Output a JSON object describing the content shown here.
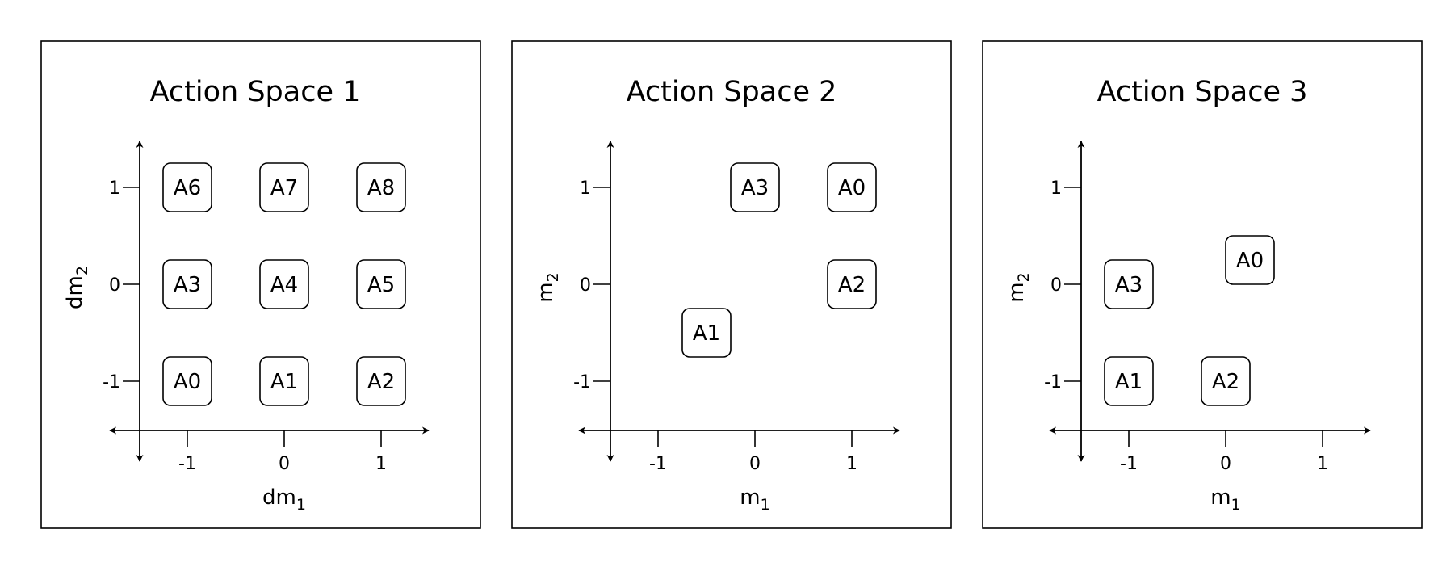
{
  "panels": [
    {
      "title": "Action Space 1",
      "xlabel": "dm",
      "xlabel_sub": "1",
      "ylabel": "dm",
      "ylabel_sub": "2",
      "x_ticks": [
        "-1",
        "0",
        "1"
      ],
      "y_ticks": [
        "1",
        "0",
        "-1"
      ],
      "actions": [
        {
          "label": "A6",
          "x": -1,
          "y": 1
        },
        {
          "label": "A7",
          "x": 0,
          "y": 1
        },
        {
          "label": "A8",
          "x": 1,
          "y": 1
        },
        {
          "label": "A3",
          "x": -1,
          "y": 0
        },
        {
          "label": "A4",
          "x": 0,
          "y": 0
        },
        {
          "label": "A5",
          "x": 1,
          "y": 0
        },
        {
          "label": "A0",
          "x": -1,
          "y": -1
        },
        {
          "label": "A1",
          "x": 0,
          "y": -1
        },
        {
          "label": "A2",
          "x": 1,
          "y": -1
        }
      ]
    },
    {
      "title": "Action Space 2",
      "xlabel": "m",
      "xlabel_sub": "1",
      "ylabel": "m",
      "ylabel_sub": "2",
      "x_ticks": [
        "-1",
        "0",
        "1"
      ],
      "y_ticks": [
        "1",
        "0",
        "-1"
      ],
      "actions": [
        {
          "label": "A3",
          "x": 0,
          "y": 1
        },
        {
          "label": "A0",
          "x": 1,
          "y": 1
        },
        {
          "label": "A2",
          "x": 1,
          "y": 0
        },
        {
          "label": "A1",
          "x": -0.5,
          "y": -0.5
        }
      ]
    },
    {
      "title": "Action Space 3",
      "xlabel": "m",
      "xlabel_sub": "1",
      "ylabel": "m",
      "ylabel_sub": "2",
      "x_ticks": [
        "-1",
        "0",
        "1"
      ],
      "y_ticks": [
        "1",
        "0",
        "-1"
      ],
      "actions": [
        {
          "label": "A0",
          "x": 0.25,
          "y": 0.25
        },
        {
          "label": "A3",
          "x": -1,
          "y": 0
        },
        {
          "label": "A1",
          "x": -1,
          "y": -1
        },
        {
          "label": "A2",
          "x": 0,
          "y": -1
        }
      ]
    }
  ]
}
